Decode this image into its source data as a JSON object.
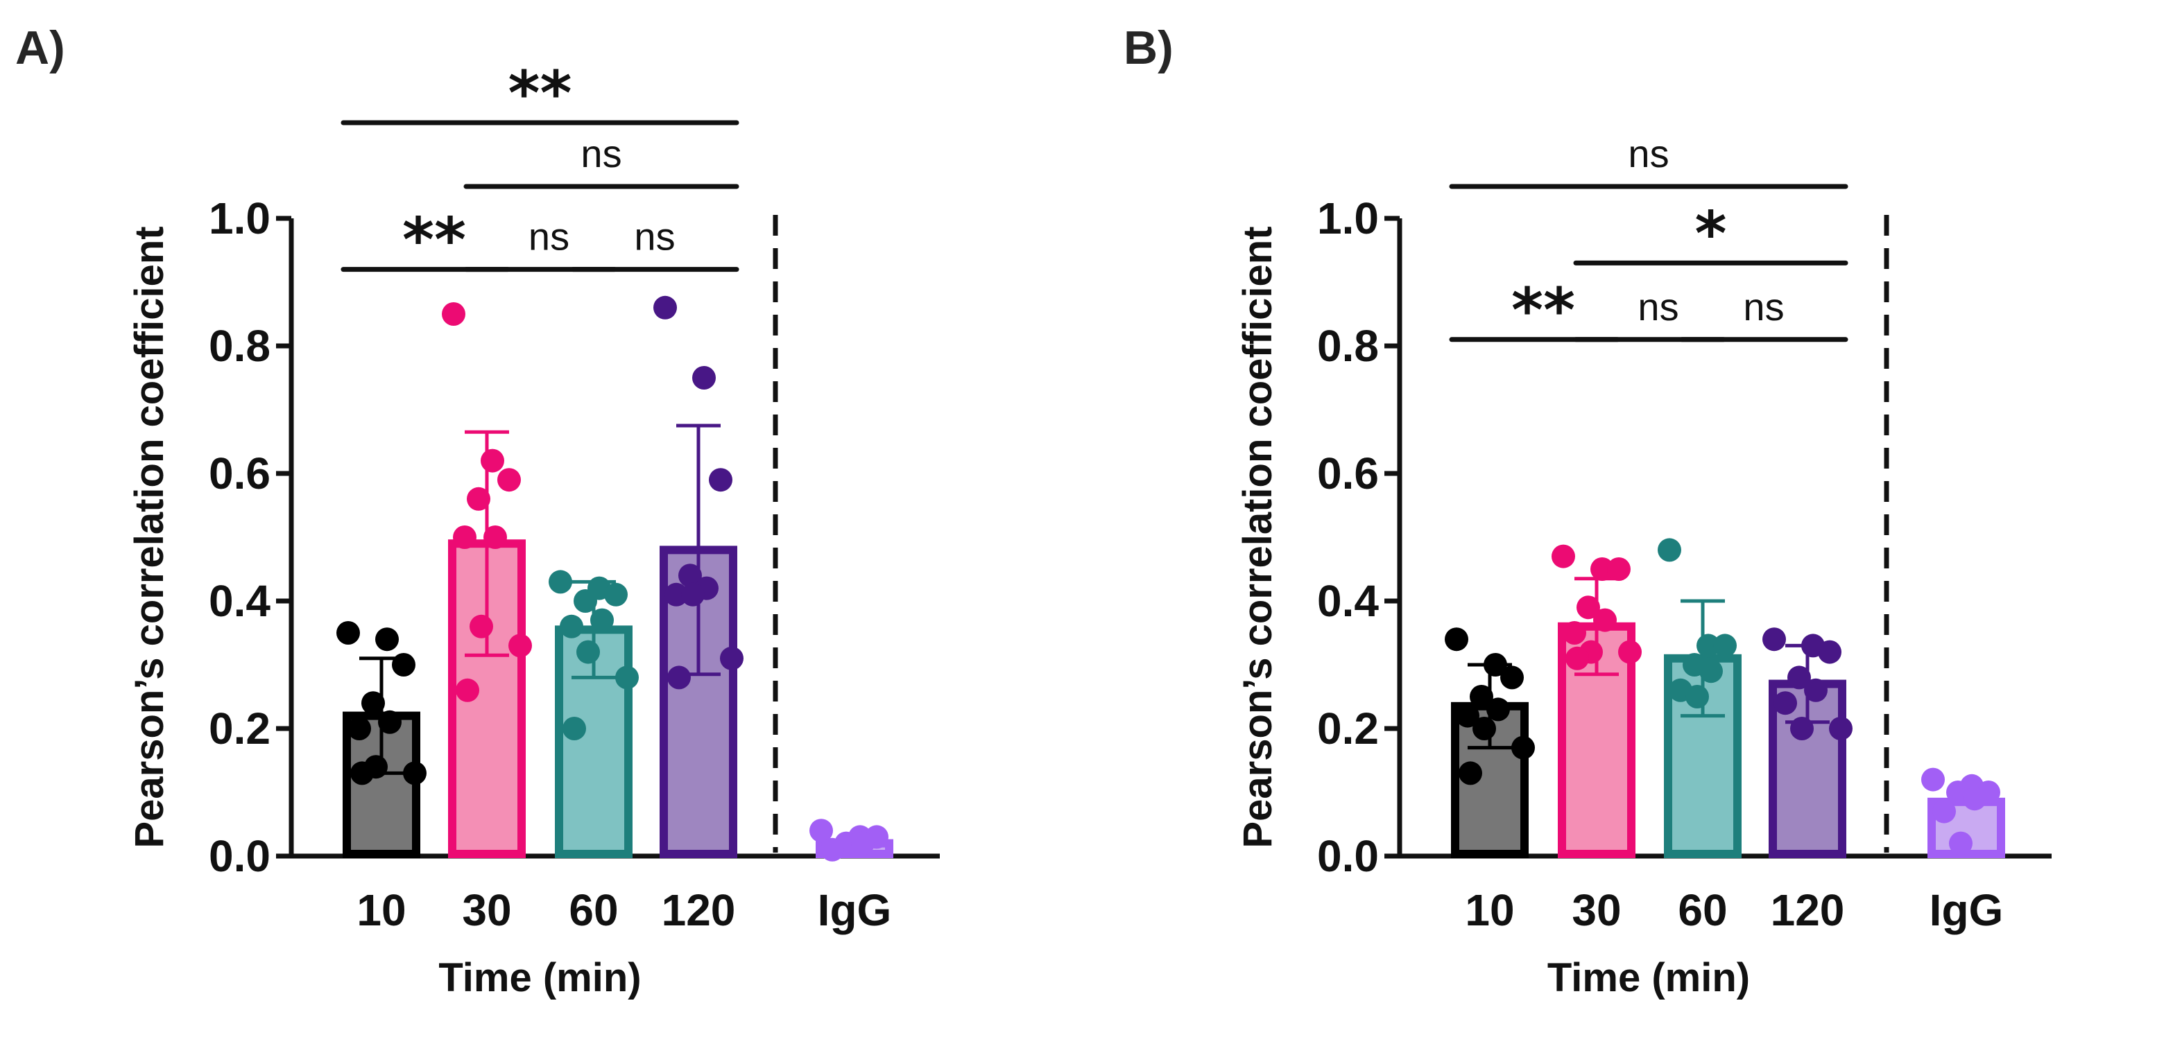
{
  "chart_data": [
    {
      "type": "bar",
      "panel_label": "A)",
      "ylabel": "Pearson’s correlation coefficient",
      "xlabel": "Time (min)",
      "ylim": [
        0,
        1.0
      ],
      "yticks": [
        "0.0",
        "0.2",
        "0.4",
        "0.6",
        "0.8",
        "1.0"
      ],
      "categories": [
        "10",
        "30",
        "60",
        "120",
        "IgG"
      ],
      "grid": false,
      "bars": [
        {
          "category": "10",
          "mean": 0.22,
          "sd": 0.09,
          "fill": "#777777",
          "stroke": "#000000",
          "points": [
            0.35,
            0.34,
            0.3,
            0.24,
            0.21,
            0.2,
            0.14,
            0.13,
            0.13
          ]
        },
        {
          "category": "30",
          "mean": 0.49,
          "sd": 0.175,
          "fill": "#F48FB5",
          "stroke": "#EC0B73",
          "points": [
            0.85,
            0.62,
            0.59,
            0.56,
            0.5,
            0.5,
            0.36,
            0.33,
            0.26
          ]
        },
        {
          "category": "60",
          "mean": 0.355,
          "sd": 0.075,
          "fill": "#7FC2C2",
          "stroke": "#1E7F7C",
          "points": [
            0.43,
            0.42,
            0.41,
            0.4,
            0.37,
            0.36,
            0.32,
            0.28,
            0.2
          ]
        },
        {
          "category": "120",
          "mean": 0.48,
          "sd": 0.195,
          "fill": "#9E86C0",
          "stroke": "#481786",
          "points": [
            0.86,
            0.75,
            0.59,
            0.44,
            0.42,
            0.41,
            0.41,
            0.31,
            0.28
          ]
        },
        {
          "category": "IgG",
          "mean": 0.02,
          "sd": 0.0,
          "fill": "#C9AAF2",
          "stroke": "#A25FF5",
          "points": [
            0.04,
            0.03,
            0.03,
            0.02,
            0.02,
            0.01
          ]
        }
      ],
      "significance": [
        {
          "from": "10",
          "to": "30",
          "label": "**",
          "level": 0.92
        },
        {
          "from": "30",
          "to": "60",
          "label": "ns",
          "level": 0.92
        },
        {
          "from": "60",
          "to": "120",
          "label": "ns",
          "level": 0.92
        },
        {
          "from": "30",
          "to": "120",
          "label": "ns",
          "level": 1.05
        },
        {
          "from": "10",
          "to": "120",
          "label": "**",
          "level": 1.15
        }
      ]
    },
    {
      "type": "bar",
      "panel_label": "B)",
      "ylabel": "Pearson’s correlation coefficient",
      "xlabel": "Time (min)",
      "ylim": [
        0,
        1.0
      ],
      "yticks": [
        "0.0",
        "0.2",
        "0.4",
        "0.6",
        "0.8",
        "1.0"
      ],
      "categories": [
        "10",
        "30",
        "60",
        "120",
        "IgG"
      ],
      "grid": false,
      "bars": [
        {
          "category": "10",
          "mean": 0.235,
          "sd": 0.065,
          "fill": "#777777",
          "stroke": "#000000",
          "points": [
            0.34,
            0.3,
            0.28,
            0.25,
            0.23,
            0.22,
            0.2,
            0.17,
            0.13
          ]
        },
        {
          "category": "30",
          "mean": 0.36,
          "sd": 0.075,
          "fill": "#F48FB5",
          "stroke": "#EC0B73",
          "points": [
            0.47,
            0.45,
            0.45,
            0.39,
            0.37,
            0.35,
            0.32,
            0.32,
            0.31
          ]
        },
        {
          "category": "60",
          "mean": 0.31,
          "sd": 0.09,
          "fill": "#7FC2C2",
          "stroke": "#1E7F7C",
          "points": [
            0.48,
            0.33,
            0.33,
            0.3,
            0.29,
            0.26,
            0.25
          ]
        },
        {
          "category": "120",
          "mean": 0.27,
          "sd": 0.06,
          "fill": "#9E86C0",
          "stroke": "#481786",
          "points": [
            0.34,
            0.33,
            0.32,
            0.28,
            0.26,
            0.24,
            0.2,
            0.2
          ]
        },
        {
          "category": "IgG",
          "mean": 0.085,
          "sd": 0.0,
          "fill": "#C9AAF2",
          "stroke": "#A25FF5",
          "points": [
            0.12,
            0.11,
            0.1,
            0.1,
            0.09,
            0.07,
            0.02
          ]
        }
      ],
      "significance": [
        {
          "from": "10",
          "to": "30",
          "label": "**",
          "level": 0.81
        },
        {
          "from": "30",
          "to": "60",
          "label": "ns",
          "level": 0.81
        },
        {
          "from": "60",
          "to": "120",
          "label": "ns",
          "level": 0.81
        },
        {
          "from": "30",
          "to": "120",
          "label": "*",
          "level": 0.93
        },
        {
          "from": "10",
          "to": "120",
          "label": "ns",
          "level": 1.05
        }
      ]
    }
  ]
}
